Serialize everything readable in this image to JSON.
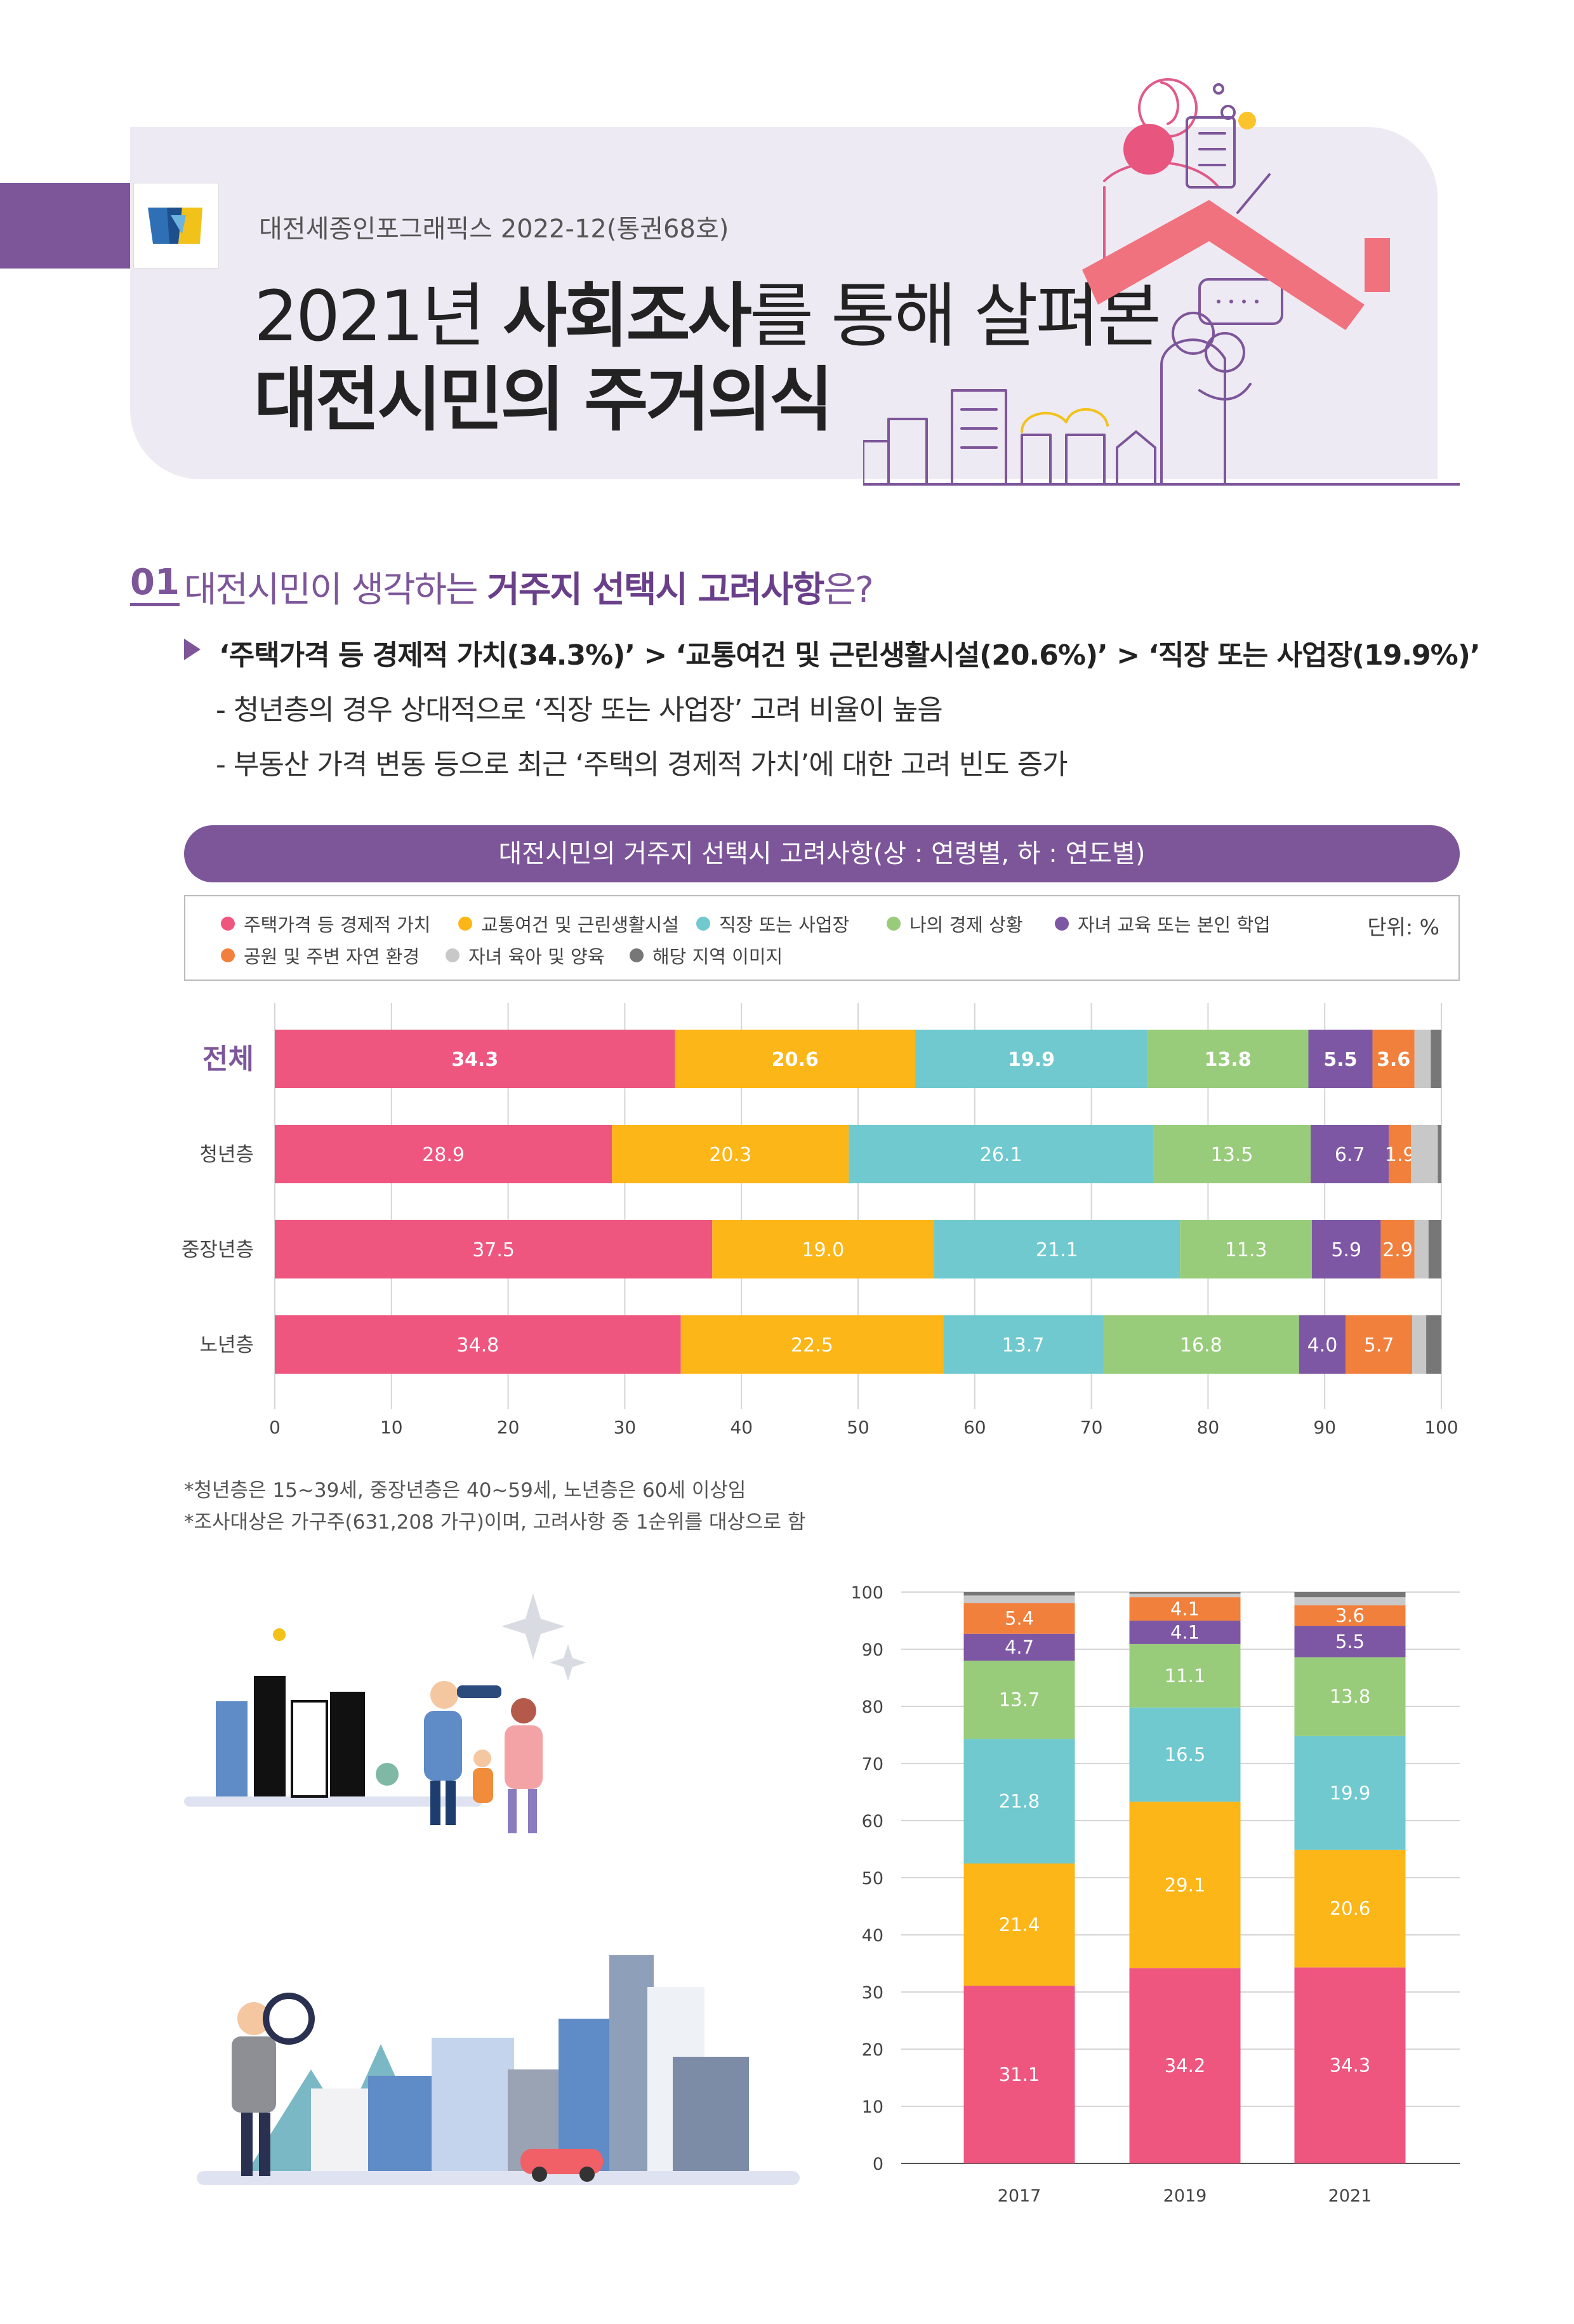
{
  "header": {
    "issue": "대전세종인포그래픽스 2022-12(통권68호)",
    "title_line1_pre": "2021년 ",
    "title_line1_bold": "사회조사",
    "title_line1_post": "를 통해 살펴본",
    "title_line2": "대전시민의 주거의식"
  },
  "section": {
    "number": "01",
    "question_pre": "대전시민이 생각하는 ",
    "question_bold": "거주지 선택시 고려사항",
    "question_post": "은?",
    "key_point": "‘주택가격 등 경제적 가치(34.3%)’ > ‘교통여건 및 근린생활시설(20.6%)’ > ‘직장 또는 사업장(19.9%)’",
    "bullets": [
      "- 청년층의 경우 상대적으로 ‘직장 또는 사업장’ 고려 비율이 높음",
      "- 부동산 가격 변동 등으로 최근 ‘주택의 경제적 가치’에 대한 고려 빈도 증가"
    ]
  },
  "chart_banner": "대전시민의 거주지 선택시 고려사항(상 : 연령별, 하 : 연도별)",
  "legend": {
    "unit": "단위: %",
    "items": [
      {
        "label": "주택가격 등 경제적 가치",
        "color": "#ee5680"
      },
      {
        "label": "교통여건 및 근린생활시설",
        "color": "#fcb618"
      },
      {
        "label": "직장 또는 사업장",
        "color": "#6fc9cf"
      },
      {
        "label": "나의 경제 상황",
        "color": "#98cc7b"
      },
      {
        "label": "자녀 교육 또는 본인 학업",
        "color": "#7e57a4"
      },
      {
        "label": "공원 및 주변 자연 환경",
        "color": "#f1803d"
      },
      {
        "label": "자녀 육아 및 양육",
        "color": "#c8c8c8"
      },
      {
        "label": "해당 지역 이미지",
        "color": "#777777"
      }
    ]
  },
  "notes": [
    "*청년층은 15~39세, 중장년층은 40~59세, 노년층은 60세 이상임",
    "*조사대상은 가구주(631,208 가구)이며, 고려사항 중 1순위를 대상으로 함"
  ],
  "chart_data": [
    {
      "type": "bar",
      "orientation": "horizontal",
      "stacked": true,
      "categories": [
        "전체",
        "청년층",
        "중장년층",
        "노년층"
      ],
      "xlim": [
        0,
        100
      ],
      "xticks": [
        0,
        10,
        20,
        30,
        40,
        50,
        60,
        70,
        80,
        90,
        100
      ],
      "series": [
        {
          "name": "주택가격 등 경제적 가치",
          "values": [
            34.3,
            28.9,
            37.5,
            34.8
          ],
          "labels": [
            "34.3",
            "28.9",
            "37.5",
            "34.8"
          ]
        },
        {
          "name": "교통여건 및 근린생활시설",
          "values": [
            20.6,
            20.3,
            19.0,
            22.5
          ],
          "labels": [
            "20.6",
            "20.3",
            "19.0",
            "22.5"
          ]
        },
        {
          "name": "직장 또는 사업장",
          "values": [
            19.9,
            26.1,
            21.1,
            13.7
          ],
          "labels": [
            "19.9",
            "26.1",
            "21.1",
            "13.7"
          ]
        },
        {
          "name": "나의 경제 상황",
          "values": [
            13.8,
            13.5,
            11.3,
            16.8
          ],
          "labels": [
            "13.8",
            "13.5",
            "11.3",
            "16.8"
          ]
        },
        {
          "name": "자녀 교육 또는 본인 학업",
          "values": [
            5.5,
            6.7,
            5.9,
            4.0
          ],
          "labels": [
            "5.5",
            "6.7",
            "5.9",
            "4.0"
          ]
        },
        {
          "name": "공원 및 주변 자연 환경",
          "values": [
            3.6,
            1.9,
            2.9,
            5.7
          ],
          "labels": [
            "3.6",
            "1.9",
            "2.9",
            "5.7"
          ]
        },
        {
          "name": "자녀 육아 및 양육",
          "values": [
            1.4,
            2.3,
            1.2,
            1.2
          ],
          "labels": [
            "",
            "",
            "",
            ""
          ]
        },
        {
          "name": "해당 지역 이미지",
          "values": [
            0.9,
            0.3,
            1.1,
            1.3
          ],
          "labels": [
            "",
            "",
            "",
            ""
          ]
        }
      ]
    },
    {
      "type": "bar",
      "orientation": "vertical",
      "stacked": true,
      "categories": [
        "2017",
        "2019",
        "2021"
      ],
      "ylim": [
        0,
        100
      ],
      "yticks": [
        0,
        10,
        20,
        30,
        40,
        50,
        60,
        70,
        80,
        90,
        100
      ],
      "series": [
        {
          "name": "주택가격 등 경제적 가치",
          "values": [
            31.1,
            34.2,
            34.3
          ],
          "labels": [
            "31.1",
            "34.2",
            "34.3"
          ]
        },
        {
          "name": "교통여건 및 근린생활시설",
          "values": [
            21.4,
            29.1,
            20.6
          ],
          "labels": [
            "21.4",
            "29.1",
            "20.6"
          ]
        },
        {
          "name": "직장 또는 사업장",
          "values": [
            21.8,
            16.5,
            19.9
          ],
          "labels": [
            "21.8",
            "16.5",
            "19.9"
          ]
        },
        {
          "name": "나의 경제 상황",
          "values": [
            13.7,
            11.1,
            13.8
          ],
          "labels": [
            "13.7",
            "11.1",
            "13.8"
          ]
        },
        {
          "name": "자녀 교육 또는 본인 학업",
          "values": [
            4.7,
            4.1,
            5.5
          ],
          "labels": [
            "4.7",
            "4.1",
            "5.5"
          ]
        },
        {
          "name": "공원 및 주변 자연 환경",
          "values": [
            5.4,
            4.1,
            3.6
          ],
          "labels": [
            "5.4",
            "4.1",
            "3.6"
          ]
        },
        {
          "name": "자녀 육아 및 양육",
          "values": [
            1.3,
            0.6,
            1.4
          ],
          "labels": [
            "",
            "",
            ""
          ]
        },
        {
          "name": "해당 지역 이미지",
          "values": [
            0.6,
            0.3,
            0.9
          ],
          "labels": [
            "",
            "",
            ""
          ]
        }
      ]
    }
  ]
}
